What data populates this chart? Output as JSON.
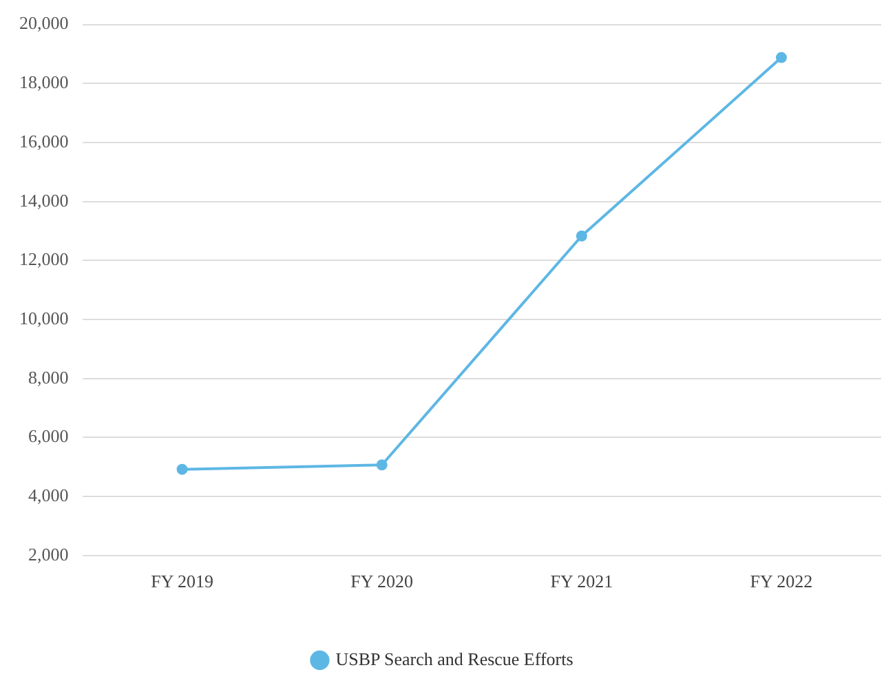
{
  "chart_data": {
    "type": "line",
    "categories": [
      "FY 2019",
      "FY 2020",
      "FY 2021",
      "FY 2022"
    ],
    "series": [
      {
        "name": "USBP Search and Rescue Efforts",
        "color": "#5db7e4",
        "values": [
          4920,
          5070,
          12830,
          18880
        ]
      }
    ],
    "ylim": [
      2000,
      20000
    ],
    "yticks": [
      {
        "value": 2000,
        "label": "2,000"
      },
      {
        "value": 4000,
        "label": "4,000"
      },
      {
        "value": 6000,
        "label": "6,000"
      },
      {
        "value": 8000,
        "label": "8,000"
      },
      {
        "value": 10000,
        "label": "10,000"
      },
      {
        "value": 12000,
        "label": "12,000"
      },
      {
        "value": 14000,
        "label": "14,000"
      },
      {
        "value": 16000,
        "label": "16,000"
      },
      {
        "value": 18000,
        "label": "18,000"
      },
      {
        "value": 20000,
        "label": "20,000"
      }
    ],
    "grid": "y",
    "legend": "bottom",
    "marker": "circle",
    "line_style": "solid"
  }
}
